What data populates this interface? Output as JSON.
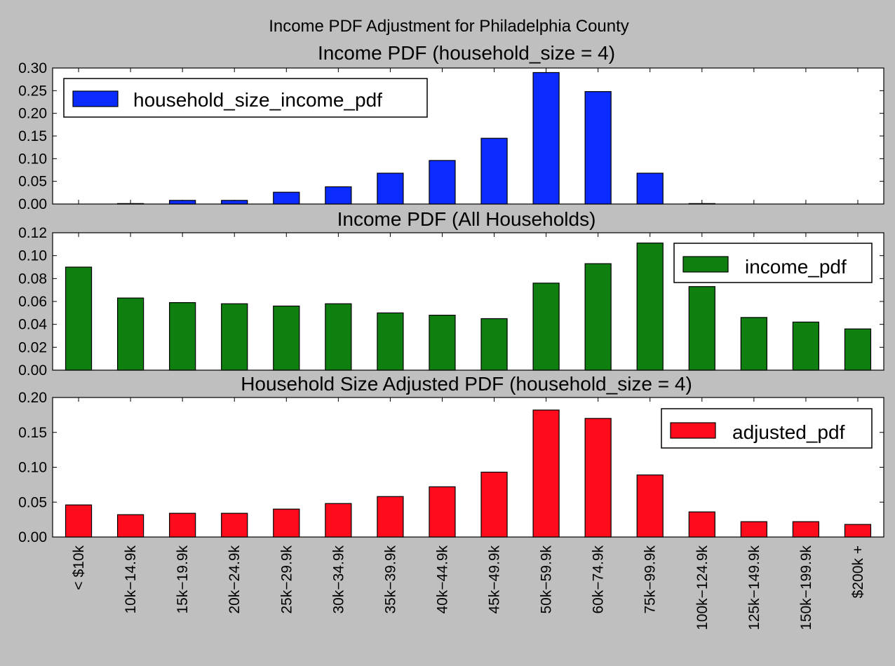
{
  "figure": {
    "suptitle": "Income PDF Adjustment for Philadelphia County"
  },
  "chart_data": [
    {
      "type": "bar",
      "title": "Income PDF (household_size = 4)",
      "xlabel": "",
      "ylabel": "",
      "categories": [
        "< $10k",
        "$10k-$14.9k",
        "$15k-$19.9k",
        "$20k-$24.9k",
        "$25k-$29.9k",
        "$30k-$34.9k",
        "$35k-$39.9k",
        "$40k-$44.9k",
        "$45k-$49.9k",
        "$50k-$59.9k",
        "$60k-$74.9k",
        "$75k-$99.9k",
        "$100k-$124.9k",
        "$125k-$149.9k",
        "$150k-$199.9k",
        "$200k +"
      ],
      "series": [
        {
          "name": "household_size_income_pdf",
          "color": "#0c2cff",
          "values": [
            0.0,
            0.001,
            0.008,
            0.008,
            0.026,
            0.038,
            0.068,
            0.096,
            0.145,
            0.29,
            0.248,
            0.068,
            0.001,
            0.0,
            0.0,
            0.0
          ]
        }
      ],
      "ylim": [
        0,
        0.3
      ],
      "yticks": [
        0.0,
        0.05,
        0.1,
        0.15,
        0.2,
        0.25,
        0.3
      ],
      "ytick_labels": [
        "0.00",
        "0.05",
        "0.10",
        "0.15",
        "0.20",
        "0.25",
        "0.30"
      ],
      "legend": "top-left"
    },
    {
      "type": "bar",
      "title": "Income PDF (All Households)",
      "xlabel": "",
      "ylabel": "",
      "categories": [
        "< $10k",
        "$10k-$14.9k",
        "$15k-$19.9k",
        "$20k-$24.9k",
        "$25k-$29.9k",
        "$30k-$34.9k",
        "$35k-$39.9k",
        "$40k-$44.9k",
        "$45k-$49.9k",
        "$50k-$59.9k",
        "$60k-$74.9k",
        "$75k-$99.9k",
        "$100k-$124.9k",
        "$125k-$149.9k",
        "$150k-$199.9k",
        "$200k +"
      ],
      "series": [
        {
          "name": "income_pdf",
          "color": "#0f7f0f",
          "values": [
            0.09,
            0.063,
            0.059,
            0.058,
            0.056,
            0.058,
            0.05,
            0.048,
            0.045,
            0.076,
            0.093,
            0.111,
            0.073,
            0.046,
            0.042,
            0.036
          ]
        }
      ],
      "ylim": [
        0,
        0.12
      ],
      "yticks": [
        0.0,
        0.02,
        0.04,
        0.06,
        0.08,
        0.1,
        0.12
      ],
      "ytick_labels": [
        "0.00",
        "0.02",
        "0.04",
        "0.06",
        "0.08",
        "0.10",
        "0.12"
      ],
      "legend": "top-right"
    },
    {
      "type": "bar",
      "title": "Household Size Adjusted PDF (household_size = 4)",
      "xlabel": "",
      "ylabel": "",
      "categories": [
        "< $10k",
        "$10k-$14.9k",
        "$15k-$19.9k",
        "$20k-$24.9k",
        "$25k-$29.9k",
        "$30k-$34.9k",
        "$35k-$39.9k",
        "$40k-$44.9k",
        "$45k-$49.9k",
        "$50k-$59.9k",
        "$60k-$74.9k",
        "$75k-$99.9k",
        "$100k-$124.9k",
        "$125k-$149.9k",
        "$150k-$199.9k",
        "$200k +"
      ],
      "series": [
        {
          "name": "adjusted_pdf",
          "color": "#ff0c1c",
          "values": [
            0.046,
            0.032,
            0.034,
            0.034,
            0.04,
            0.048,
            0.058,
            0.072,
            0.093,
            0.182,
            0.17,
            0.089,
            0.036,
            0.022,
            0.022,
            0.018
          ]
        }
      ],
      "ylim": [
        0,
        0.2
      ],
      "yticks": [
        0.0,
        0.05,
        0.1,
        0.15,
        0.2
      ],
      "ytick_labels": [
        "0.00",
        "0.05",
        "0.10",
        "0.15",
        "0.20"
      ],
      "xtick_labels": [
        "< $10k",
        "10k−14.9k",
        "15k−19.9k",
        "20k−24.9k",
        "25k−29.9k",
        "30k−34.9k",
        "35k−39.9k",
        "40k−44.9k",
        "45k−49.9k",
        "50k−59.9k",
        "60k−74.9k",
        "75k−99.9k",
        "100k−124.9k",
        "125k−149.9k",
        "150k−199.9k",
        "$200k +"
      ],
      "legend": "top-right"
    }
  ]
}
